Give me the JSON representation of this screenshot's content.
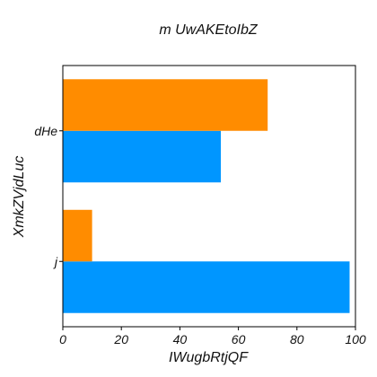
{
  "chart_data": {
    "type": "bar",
    "orientation": "horizontal",
    "title": "m UwAKEtoIbZ",
    "xlabel": "IWugbRtjQF",
    "ylabel": "XmkZVjdLuc",
    "categories": [
      "j",
      "dHe"
    ],
    "series": [
      {
        "color": "#0096ff",
        "values": [
          98,
          54
        ]
      },
      {
        "color": "#ff8c00",
        "values": [
          10,
          70
        ]
      }
    ],
    "xlim": [
      0,
      100
    ],
    "xticks": [
      "0",
      "20",
      "40",
      "60",
      "80",
      "100"
    ],
    "grid": false,
    "legend": "none"
  }
}
